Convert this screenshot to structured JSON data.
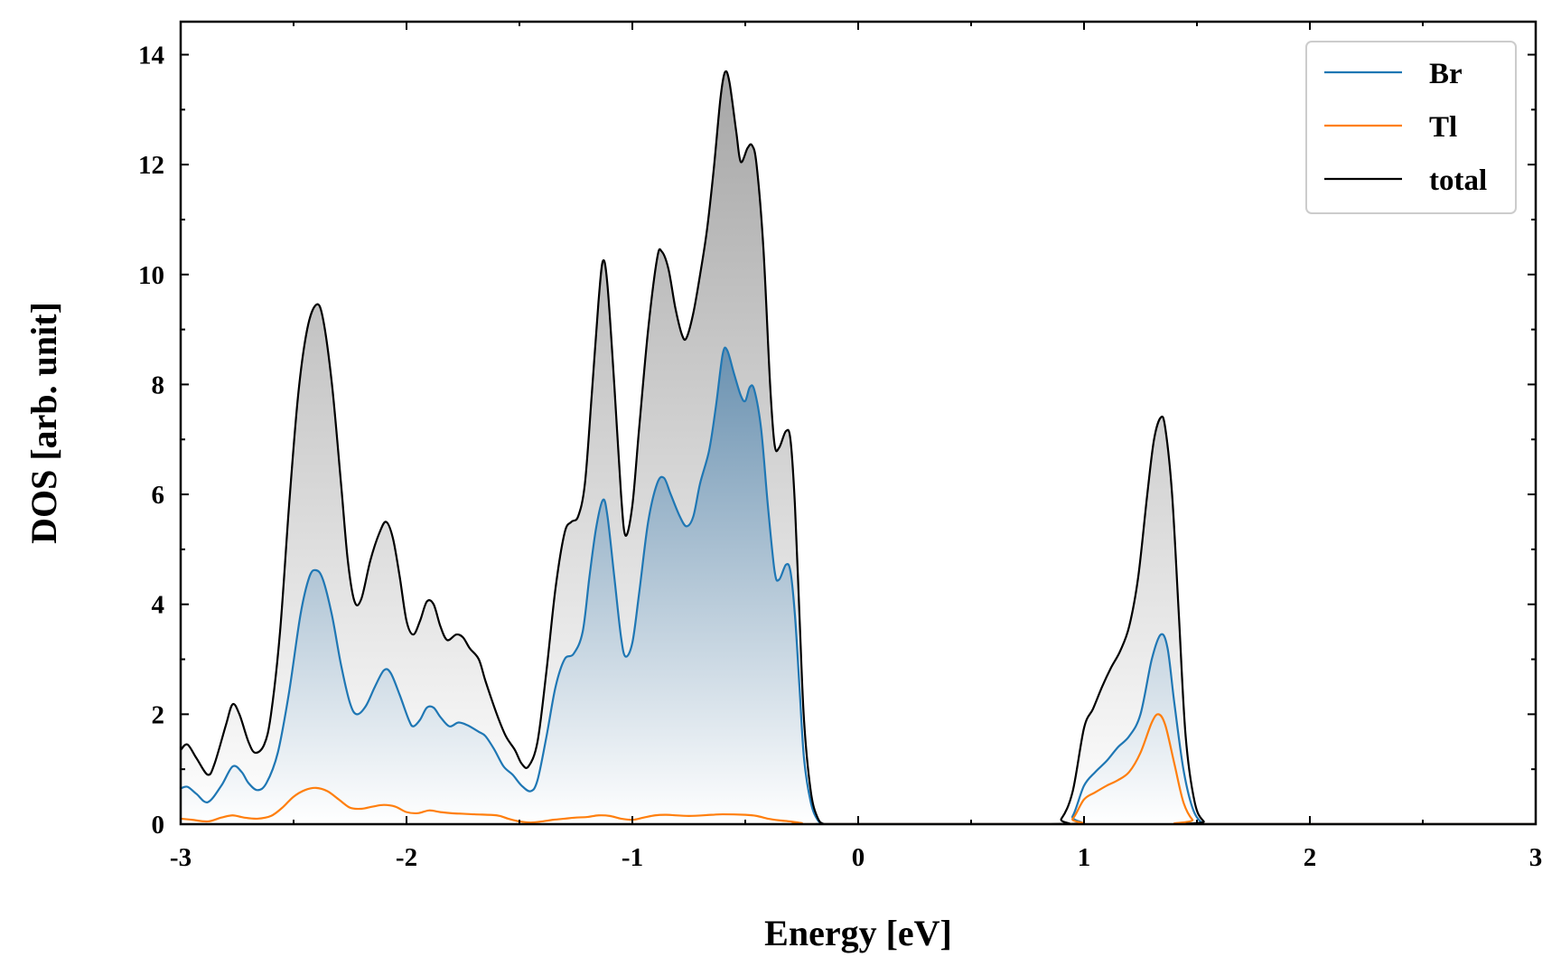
{
  "chart_data": {
    "type": "line",
    "xlabel": "Energy [eV]",
    "ylabel": "DOS [arb. unit]",
    "xlim": [
      -3,
      3
    ],
    "ylim": [
      0,
      14.6
    ],
    "x_ticks": [
      -3,
      -2,
      -1,
      0,
      1,
      2,
      3
    ],
    "x_tick_labels": [
      "-3",
      "-2",
      "-1",
      "0",
      "1",
      "2",
      "3"
    ],
    "y_ticks": [
      0,
      2,
      4,
      6,
      8,
      10,
      12,
      14
    ],
    "y_tick_labels": [
      "0",
      "2",
      "4",
      "6",
      "8",
      "10",
      "12",
      "14"
    ],
    "grid": false,
    "legend_position": "top-right",
    "series": [
      {
        "name": "Br",
        "color": "#1f77b4",
        "fill": "blue-gradient",
        "points": [
          [
            -3.0,
            0.65
          ],
          [
            -2.97,
            0.68
          ],
          [
            -2.93,
            0.55
          ],
          [
            -2.88,
            0.4
          ],
          [
            -2.82,
            0.7
          ],
          [
            -2.77,
            1.05
          ],
          [
            -2.73,
            0.95
          ],
          [
            -2.7,
            0.75
          ],
          [
            -2.66,
            0.62
          ],
          [
            -2.62,
            0.75
          ],
          [
            -2.57,
            1.3
          ],
          [
            -2.52,
            2.4
          ],
          [
            -2.47,
            3.8
          ],
          [
            -2.43,
            4.5
          ],
          [
            -2.4,
            4.62
          ],
          [
            -2.37,
            4.45
          ],
          [
            -2.33,
            3.8
          ],
          [
            -2.29,
            2.9
          ],
          [
            -2.25,
            2.2
          ],
          [
            -2.22,
            2.0
          ],
          [
            -2.18,
            2.15
          ],
          [
            -2.14,
            2.5
          ],
          [
            -2.1,
            2.8
          ],
          [
            -2.07,
            2.75
          ],
          [
            -2.03,
            2.35
          ],
          [
            -1.99,
            1.9
          ],
          [
            -1.97,
            1.78
          ],
          [
            -1.94,
            1.9
          ],
          [
            -1.91,
            2.12
          ],
          [
            -1.88,
            2.12
          ],
          [
            -1.85,
            1.95
          ],
          [
            -1.81,
            1.78
          ],
          [
            -1.77,
            1.85
          ],
          [
            -1.73,
            1.8
          ],
          [
            -1.68,
            1.68
          ],
          [
            -1.65,
            1.6
          ],
          [
            -1.61,
            1.35
          ],
          [
            -1.57,
            1.05
          ],
          [
            -1.53,
            0.9
          ],
          [
            -1.49,
            0.7
          ],
          [
            -1.45,
            0.6
          ],
          [
            -1.42,
            0.8
          ],
          [
            -1.38,
            1.6
          ],
          [
            -1.34,
            2.5
          ],
          [
            -1.3,
            3.0
          ],
          [
            -1.26,
            3.1
          ],
          [
            -1.22,
            3.5
          ],
          [
            -1.19,
            4.5
          ],
          [
            -1.16,
            5.4
          ],
          [
            -1.13,
            5.9
          ],
          [
            -1.11,
            5.6
          ],
          [
            -1.08,
            4.5
          ],
          [
            -1.05,
            3.4
          ],
          [
            -1.03,
            3.05
          ],
          [
            -1.0,
            3.3
          ],
          [
            -0.97,
            4.2
          ],
          [
            -0.93,
            5.5
          ],
          [
            -0.89,
            6.2
          ],
          [
            -0.86,
            6.3
          ],
          [
            -0.83,
            6.0
          ],
          [
            -0.79,
            5.6
          ],
          [
            -0.76,
            5.42
          ],
          [
            -0.73,
            5.6
          ],
          [
            -0.7,
            6.2
          ],
          [
            -0.66,
            6.8
          ],
          [
            -0.63,
            7.6
          ],
          [
            -0.6,
            8.55
          ],
          [
            -0.58,
            8.62
          ],
          [
            -0.55,
            8.2
          ],
          [
            -0.52,
            7.8
          ],
          [
            -0.5,
            7.7
          ],
          [
            -0.48,
            7.95
          ],
          [
            -0.46,
            7.9
          ],
          [
            -0.43,
            7.2
          ],
          [
            -0.4,
            5.8
          ],
          [
            -0.37,
            4.6
          ],
          [
            -0.35,
            4.45
          ],
          [
            -0.32,
            4.72
          ],
          [
            -0.3,
            4.6
          ],
          [
            -0.28,
            3.8
          ],
          [
            -0.26,
            2.5
          ],
          [
            -0.24,
            1.2
          ],
          [
            -0.21,
            0.4
          ],
          [
            -0.18,
            0.08
          ],
          [
            -0.15,
            0.0
          ],
          [
            -0.1,
            0.0
          ],
          [
            0.9,
            0.0
          ],
          [
            0.95,
            0.15
          ],
          [
            1.0,
            0.7
          ],
          [
            1.05,
            0.95
          ],
          [
            1.1,
            1.15
          ],
          [
            1.15,
            1.4
          ],
          [
            1.2,
            1.6
          ],
          [
            1.25,
            2.0
          ],
          [
            1.3,
            3.0
          ],
          [
            1.34,
            3.45
          ],
          [
            1.37,
            3.2
          ],
          [
            1.4,
            2.2
          ],
          [
            1.44,
            1.0
          ],
          [
            1.48,
            0.3
          ],
          [
            1.52,
            0.03
          ],
          [
            1.56,
            0.0
          ],
          [
            3.0,
            0.0
          ]
        ]
      },
      {
        "name": "Tl",
        "color": "#ff7f0e",
        "fill": "none",
        "points": [
          [
            -3.0,
            0.1
          ],
          [
            -2.95,
            0.08
          ],
          [
            -2.88,
            0.05
          ],
          [
            -2.82,
            0.12
          ],
          [
            -2.77,
            0.16
          ],
          [
            -2.72,
            0.12
          ],
          [
            -2.66,
            0.1
          ],
          [
            -2.6,
            0.15
          ],
          [
            -2.55,
            0.3
          ],
          [
            -2.5,
            0.5
          ],
          [
            -2.45,
            0.62
          ],
          [
            -2.4,
            0.66
          ],
          [
            -2.35,
            0.6
          ],
          [
            -2.3,
            0.45
          ],
          [
            -2.25,
            0.3
          ],
          [
            -2.2,
            0.28
          ],
          [
            -2.15,
            0.32
          ],
          [
            -2.1,
            0.35
          ],
          [
            -2.05,
            0.32
          ],
          [
            -2.0,
            0.22
          ],
          [
            -1.95,
            0.2
          ],
          [
            -1.9,
            0.25
          ],
          [
            -1.85,
            0.22
          ],
          [
            -1.8,
            0.2
          ],
          [
            -1.7,
            0.18
          ],
          [
            -1.6,
            0.16
          ],
          [
            -1.55,
            0.1
          ],
          [
            -1.5,
            0.05
          ],
          [
            -1.45,
            0.03
          ],
          [
            -1.4,
            0.05
          ],
          [
            -1.35,
            0.08
          ],
          [
            -1.3,
            0.1
          ],
          [
            -1.25,
            0.12
          ],
          [
            -1.2,
            0.13
          ],
          [
            -1.15,
            0.16
          ],
          [
            -1.1,
            0.15
          ],
          [
            -1.05,
            0.1
          ],
          [
            -1.0,
            0.08
          ],
          [
            -0.95,
            0.12
          ],
          [
            -0.9,
            0.16
          ],
          [
            -0.85,
            0.17
          ],
          [
            -0.75,
            0.15
          ],
          [
            -0.65,
            0.17
          ],
          [
            -0.6,
            0.18
          ],
          [
            -0.5,
            0.17
          ],
          [
            -0.45,
            0.15
          ],
          [
            -0.4,
            0.1
          ],
          [
            -0.35,
            0.07
          ],
          [
            -0.3,
            0.05
          ],
          [
            -0.25,
            0.02
          ],
          [
            -0.2,
            0.0
          ],
          [
            0.9,
            0.0
          ],
          [
            0.95,
            0.1
          ],
          [
            1.0,
            0.45
          ],
          [
            1.05,
            0.58
          ],
          [
            1.1,
            0.7
          ],
          [
            1.15,
            0.8
          ],
          [
            1.2,
            0.95
          ],
          [
            1.25,
            1.3
          ],
          [
            1.3,
            1.85
          ],
          [
            1.33,
            2.0
          ],
          [
            1.36,
            1.8
          ],
          [
            1.4,
            1.1
          ],
          [
            1.44,
            0.4
          ],
          [
            1.48,
            0.08
          ],
          [
            1.52,
            0.0
          ],
          [
            3.0,
            0.0
          ]
        ]
      },
      {
        "name": "total",
        "color": "#000000",
        "fill": "gray-gradient",
        "points": [
          [
            -3.0,
            1.35
          ],
          [
            -2.97,
            1.45
          ],
          [
            -2.93,
            1.2
          ],
          [
            -2.88,
            0.9
          ],
          [
            -2.85,
            1.1
          ],
          [
            -2.8,
            1.8
          ],
          [
            -2.77,
            2.18
          ],
          [
            -2.74,
            2.0
          ],
          [
            -2.7,
            1.5
          ],
          [
            -2.67,
            1.3
          ],
          [
            -2.63,
            1.45
          ],
          [
            -2.6,
            2.0
          ],
          [
            -2.56,
            3.5
          ],
          [
            -2.52,
            5.8
          ],
          [
            -2.48,
            7.8
          ],
          [
            -2.44,
            9.0
          ],
          [
            -2.4,
            9.45
          ],
          [
            -2.37,
            9.2
          ],
          [
            -2.33,
            8.0
          ],
          [
            -2.29,
            6.2
          ],
          [
            -2.26,
            4.8
          ],
          [
            -2.23,
            4.05
          ],
          [
            -2.2,
            4.1
          ],
          [
            -2.16,
            4.8
          ],
          [
            -2.12,
            5.3
          ],
          [
            -2.09,
            5.5
          ],
          [
            -2.06,
            5.2
          ],
          [
            -2.03,
            4.5
          ],
          [
            -2.0,
            3.7
          ],
          [
            -1.97,
            3.45
          ],
          [
            -1.94,
            3.7
          ],
          [
            -1.91,
            4.05
          ],
          [
            -1.88,
            4.0
          ],
          [
            -1.85,
            3.6
          ],
          [
            -1.82,
            3.35
          ],
          [
            -1.78,
            3.45
          ],
          [
            -1.75,
            3.4
          ],
          [
            -1.72,
            3.2
          ],
          [
            -1.68,
            3.0
          ],
          [
            -1.65,
            2.6
          ],
          [
            -1.6,
            2.0
          ],
          [
            -1.56,
            1.6
          ],
          [
            -1.52,
            1.35
          ],
          [
            -1.49,
            1.1
          ],
          [
            -1.46,
            1.05
          ],
          [
            -1.42,
            1.5
          ],
          [
            -1.38,
            2.8
          ],
          [
            -1.34,
            4.3
          ],
          [
            -1.3,
            5.3
          ],
          [
            -1.27,
            5.5
          ],
          [
            -1.24,
            5.6
          ],
          [
            -1.21,
            6.2
          ],
          [
            -1.18,
            7.8
          ],
          [
            -1.15,
            9.5
          ],
          [
            -1.13,
            10.25
          ],
          [
            -1.11,
            9.8
          ],
          [
            -1.08,
            8.0
          ],
          [
            -1.05,
            6.0
          ],
          [
            -1.03,
            5.25
          ],
          [
            -1.0,
            5.8
          ],
          [
            -0.97,
            7.2
          ],
          [
            -0.93,
            9.0
          ],
          [
            -0.89,
            10.3
          ],
          [
            -0.87,
            10.42
          ],
          [
            -0.84,
            10.1
          ],
          [
            -0.81,
            9.4
          ],
          [
            -0.78,
            8.9
          ],
          [
            -0.76,
            8.85
          ],
          [
            -0.73,
            9.3
          ],
          [
            -0.7,
            10.0
          ],
          [
            -0.67,
            10.8
          ],
          [
            -0.64,
            11.9
          ],
          [
            -0.61,
            13.2
          ],
          [
            -0.59,
            13.68
          ],
          [
            -0.57,
            13.5
          ],
          [
            -0.54,
            12.6
          ],
          [
            -0.52,
            12.05
          ],
          [
            -0.49,
            12.3
          ],
          [
            -0.47,
            12.35
          ],
          [
            -0.45,
            12.0
          ],
          [
            -0.42,
            10.5
          ],
          [
            -0.39,
            8.0
          ],
          [
            -0.37,
            6.9
          ],
          [
            -0.35,
            6.85
          ],
          [
            -0.32,
            7.15
          ],
          [
            -0.3,
            7.0
          ],
          [
            -0.28,
            5.8
          ],
          [
            -0.26,
            3.8
          ],
          [
            -0.24,
            1.9
          ],
          [
            -0.21,
            0.6
          ],
          [
            -0.18,
            0.12
          ],
          [
            -0.15,
            0.0
          ],
          [
            -0.1,
            0.0
          ],
          [
            0.85,
            0.0
          ],
          [
            0.9,
            0.1
          ],
          [
            0.95,
            0.6
          ],
          [
            1.0,
            1.75
          ],
          [
            1.04,
            2.1
          ],
          [
            1.08,
            2.5
          ],
          [
            1.12,
            2.85
          ],
          [
            1.16,
            3.15
          ],
          [
            1.2,
            3.6
          ],
          [
            1.24,
            4.5
          ],
          [
            1.28,
            6.0
          ],
          [
            1.31,
            7.0
          ],
          [
            1.34,
            7.4
          ],
          [
            1.36,
            7.2
          ],
          [
            1.39,
            6.0
          ],
          [
            1.42,
            3.8
          ],
          [
            1.45,
            1.6
          ],
          [
            1.49,
            0.4
          ],
          [
            1.53,
            0.05
          ],
          [
            1.57,
            0.0
          ],
          [
            3.0,
            0.0
          ]
        ]
      }
    ]
  }
}
